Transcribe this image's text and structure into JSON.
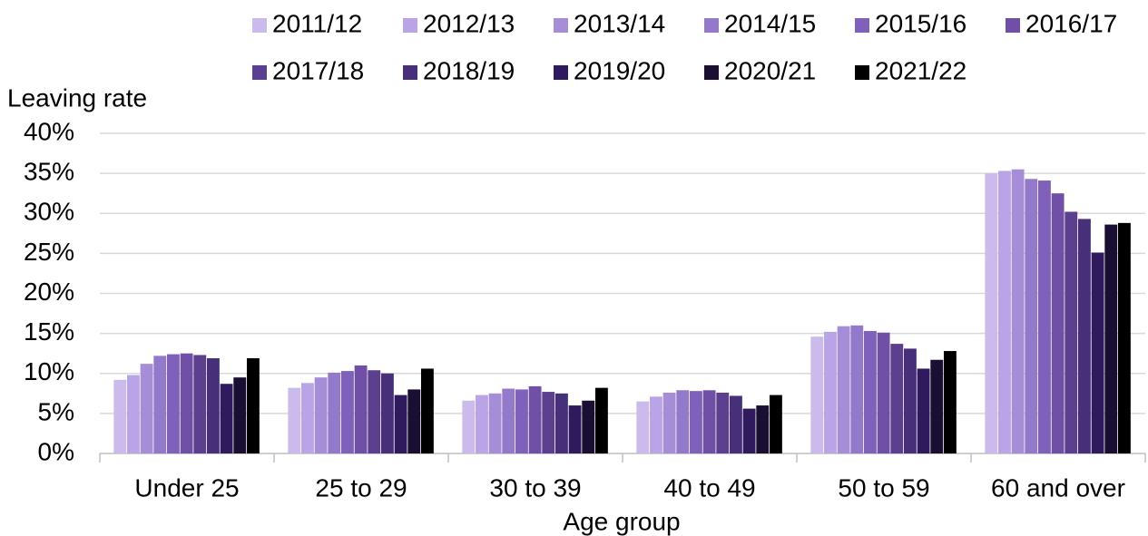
{
  "chart_data": {
    "type": "bar",
    "y_label": "Leaving rate",
    "x_label": "Age group",
    "categories": [
      "Under 25",
      "25 to 29",
      "30 to 39",
      "40 to 49",
      "50 to 59",
      "60 and over"
    ],
    "series": [
      {
        "name": "2011/12",
        "color": "#cbbbec",
        "values": [
          9.2,
          8.2,
          6.6,
          6.5,
          14.6,
          35.0
        ]
      },
      {
        "name": "2012/13",
        "color": "#b9a4e6",
        "values": [
          9.8,
          8.8,
          7.3,
          7.1,
          15.2,
          35.3
        ]
      },
      {
        "name": "2013/14",
        "color": "#a68dd8",
        "values": [
          11.2,
          9.5,
          7.5,
          7.6,
          15.9,
          35.5
        ]
      },
      {
        "name": "2014/15",
        "color": "#9478c9",
        "values": [
          12.2,
          10.1,
          8.1,
          7.9,
          16.0,
          34.3
        ]
      },
      {
        "name": "2015/16",
        "color": "#8061ba",
        "values": [
          12.4,
          10.3,
          8.0,
          7.8,
          15.3,
          34.1
        ]
      },
      {
        "name": "2016/17",
        "color": "#7050a6",
        "values": [
          12.5,
          11.0,
          8.4,
          7.9,
          15.1,
          32.5
        ]
      },
      {
        "name": "2017/18",
        "color": "#5c3f8f",
        "values": [
          12.3,
          10.4,
          7.7,
          7.6,
          13.7,
          30.2
        ]
      },
      {
        "name": "2018/19",
        "color": "#47307a",
        "values": [
          11.9,
          10.0,
          7.5,
          7.2,
          13.1,
          29.3
        ]
      },
      {
        "name": "2019/20",
        "color": "#2f1a5e",
        "values": [
          8.7,
          7.3,
          6.0,
          5.6,
          10.6,
          25.1
        ]
      },
      {
        "name": "2020/21",
        "color": "#1a0f33",
        "values": [
          9.5,
          8.0,
          6.6,
          6.0,
          11.7,
          28.6
        ]
      },
      {
        "name": "2021/22",
        "color": "#000000",
        "values": [
          11.9,
          10.6,
          8.2,
          7.3,
          12.8,
          28.8
        ]
      }
    ],
    "ylim": [
      0,
      40
    ],
    "yticks": [
      {
        "value": 0,
        "label": "0%"
      },
      {
        "value": 5,
        "label": "5%"
      },
      {
        "value": 10,
        "label": "10%"
      },
      {
        "value": 15,
        "label": "15%"
      },
      {
        "value": 20,
        "label": "20%"
      },
      {
        "value": 25,
        "label": "25%"
      },
      {
        "value": 30,
        "label": "30%"
      },
      {
        "value": 35,
        "label": "35%"
      },
      {
        "value": 40,
        "label": "40%"
      }
    ],
    "grid": true,
    "legend": "top-right"
  }
}
